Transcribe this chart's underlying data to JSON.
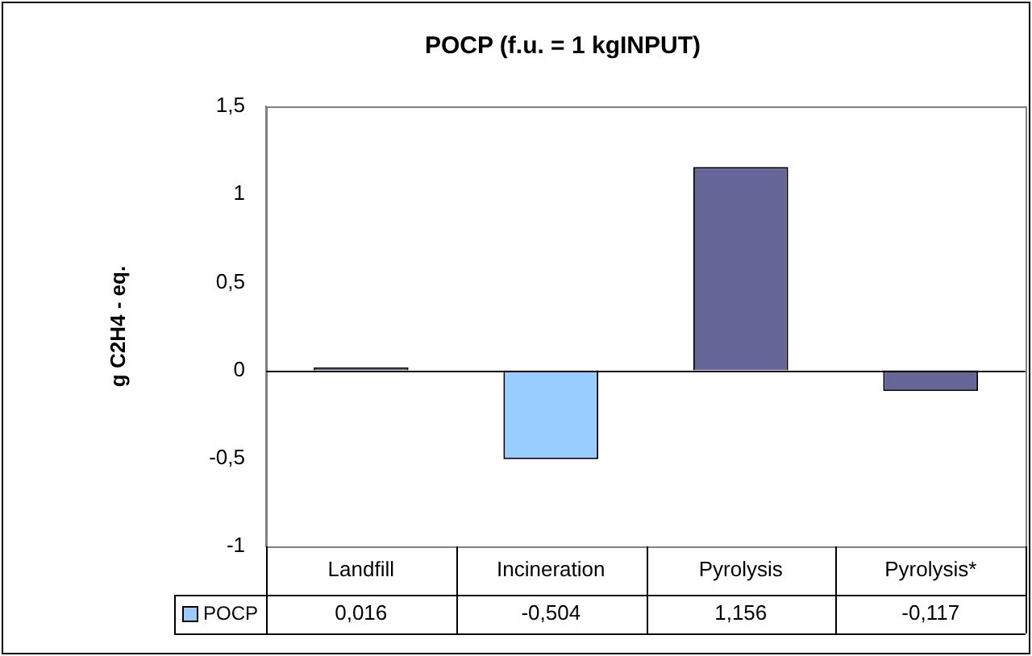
{
  "chart_data": {
    "type": "bar",
    "title": "POCP (f.u. = 1 kgINPUT)",
    "ylabel": "g C2H4 - eq.",
    "categories": [
      "Landfill",
      "Incineration",
      "Pyrolysis",
      "Pyrolysis*"
    ],
    "series": [
      {
        "name": "POCP",
        "color": "#99ccff",
        "colors": [
          "#666699",
          "#99ccff",
          "#666699",
          "#666699"
        ],
        "values": [
          0.016,
          -0.504,
          1.156,
          -0.117
        ],
        "value_labels": [
          "0,016",
          "-0,504",
          "1,156",
          "-0,117"
        ]
      }
    ],
    "ylim": [
      -1,
      1.5
    ],
    "yticks": [
      {
        "value": -1,
        "label": "-1"
      },
      {
        "value": -0.5,
        "label": "-0,5"
      },
      {
        "value": 0,
        "label": "0"
      },
      {
        "value": 0.5,
        "label": "0,5"
      },
      {
        "value": 1,
        "label": "1"
      },
      {
        "value": 1.5,
        "label": "1,5"
      }
    ],
    "legend": "bottom"
  }
}
